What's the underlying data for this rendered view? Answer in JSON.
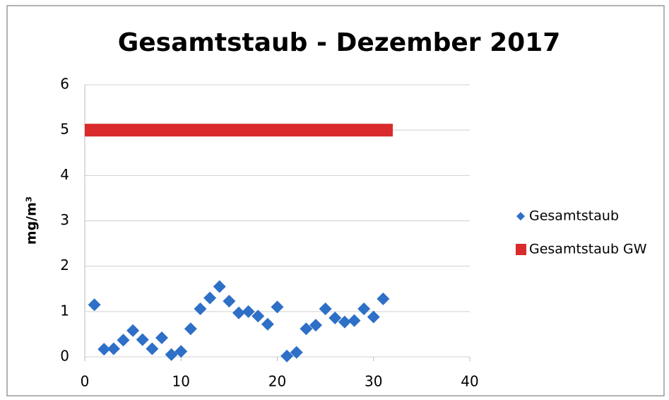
{
  "chart_data": {
    "type": "scatter",
    "title": "Gesamtstaub -  Dezember 2017",
    "y_label": "mg/m³",
    "xlim": [
      0,
      40
    ],
    "xticks": [
      0,
      10,
      20,
      30,
      40
    ],
    "ylim": [
      0,
      6
    ],
    "yticks": [
      0,
      1,
      2,
      3,
      4,
      5,
      6
    ],
    "grid": true,
    "legend": "right",
    "series": [
      {
        "name": "Gesamtstaub",
        "color": "#2e6fc7",
        "marker": "diamond",
        "x": [
          1,
          2,
          3,
          4,
          5,
          6,
          7,
          8,
          9,
          10,
          11,
          12,
          13,
          14,
          15,
          16,
          17,
          18,
          19,
          20,
          21,
          22,
          23,
          24,
          25,
          26,
          27,
          28,
          29,
          30,
          31
        ],
        "values": [
          1.15,
          0.17,
          0.18,
          0.37,
          0.58,
          0.38,
          0.18,
          0.42,
          0.05,
          0.12,
          0.62,
          1.06,
          1.3,
          1.55,
          1.23,
          0.97,
          1.0,
          0.9,
          0.72,
          1.1,
          0.02,
          0.1,
          0.62,
          0.7,
          1.06,
          0.86,
          0.77,
          0.8,
          1.06,
          0.88,
          1.28
        ]
      },
      {
        "name": "Gesamtstaub GW",
        "color": "#d92b2b",
        "marker": "square",
        "x": [
          0,
          32
        ],
        "values": [
          5,
          5
        ]
      }
    ]
  }
}
